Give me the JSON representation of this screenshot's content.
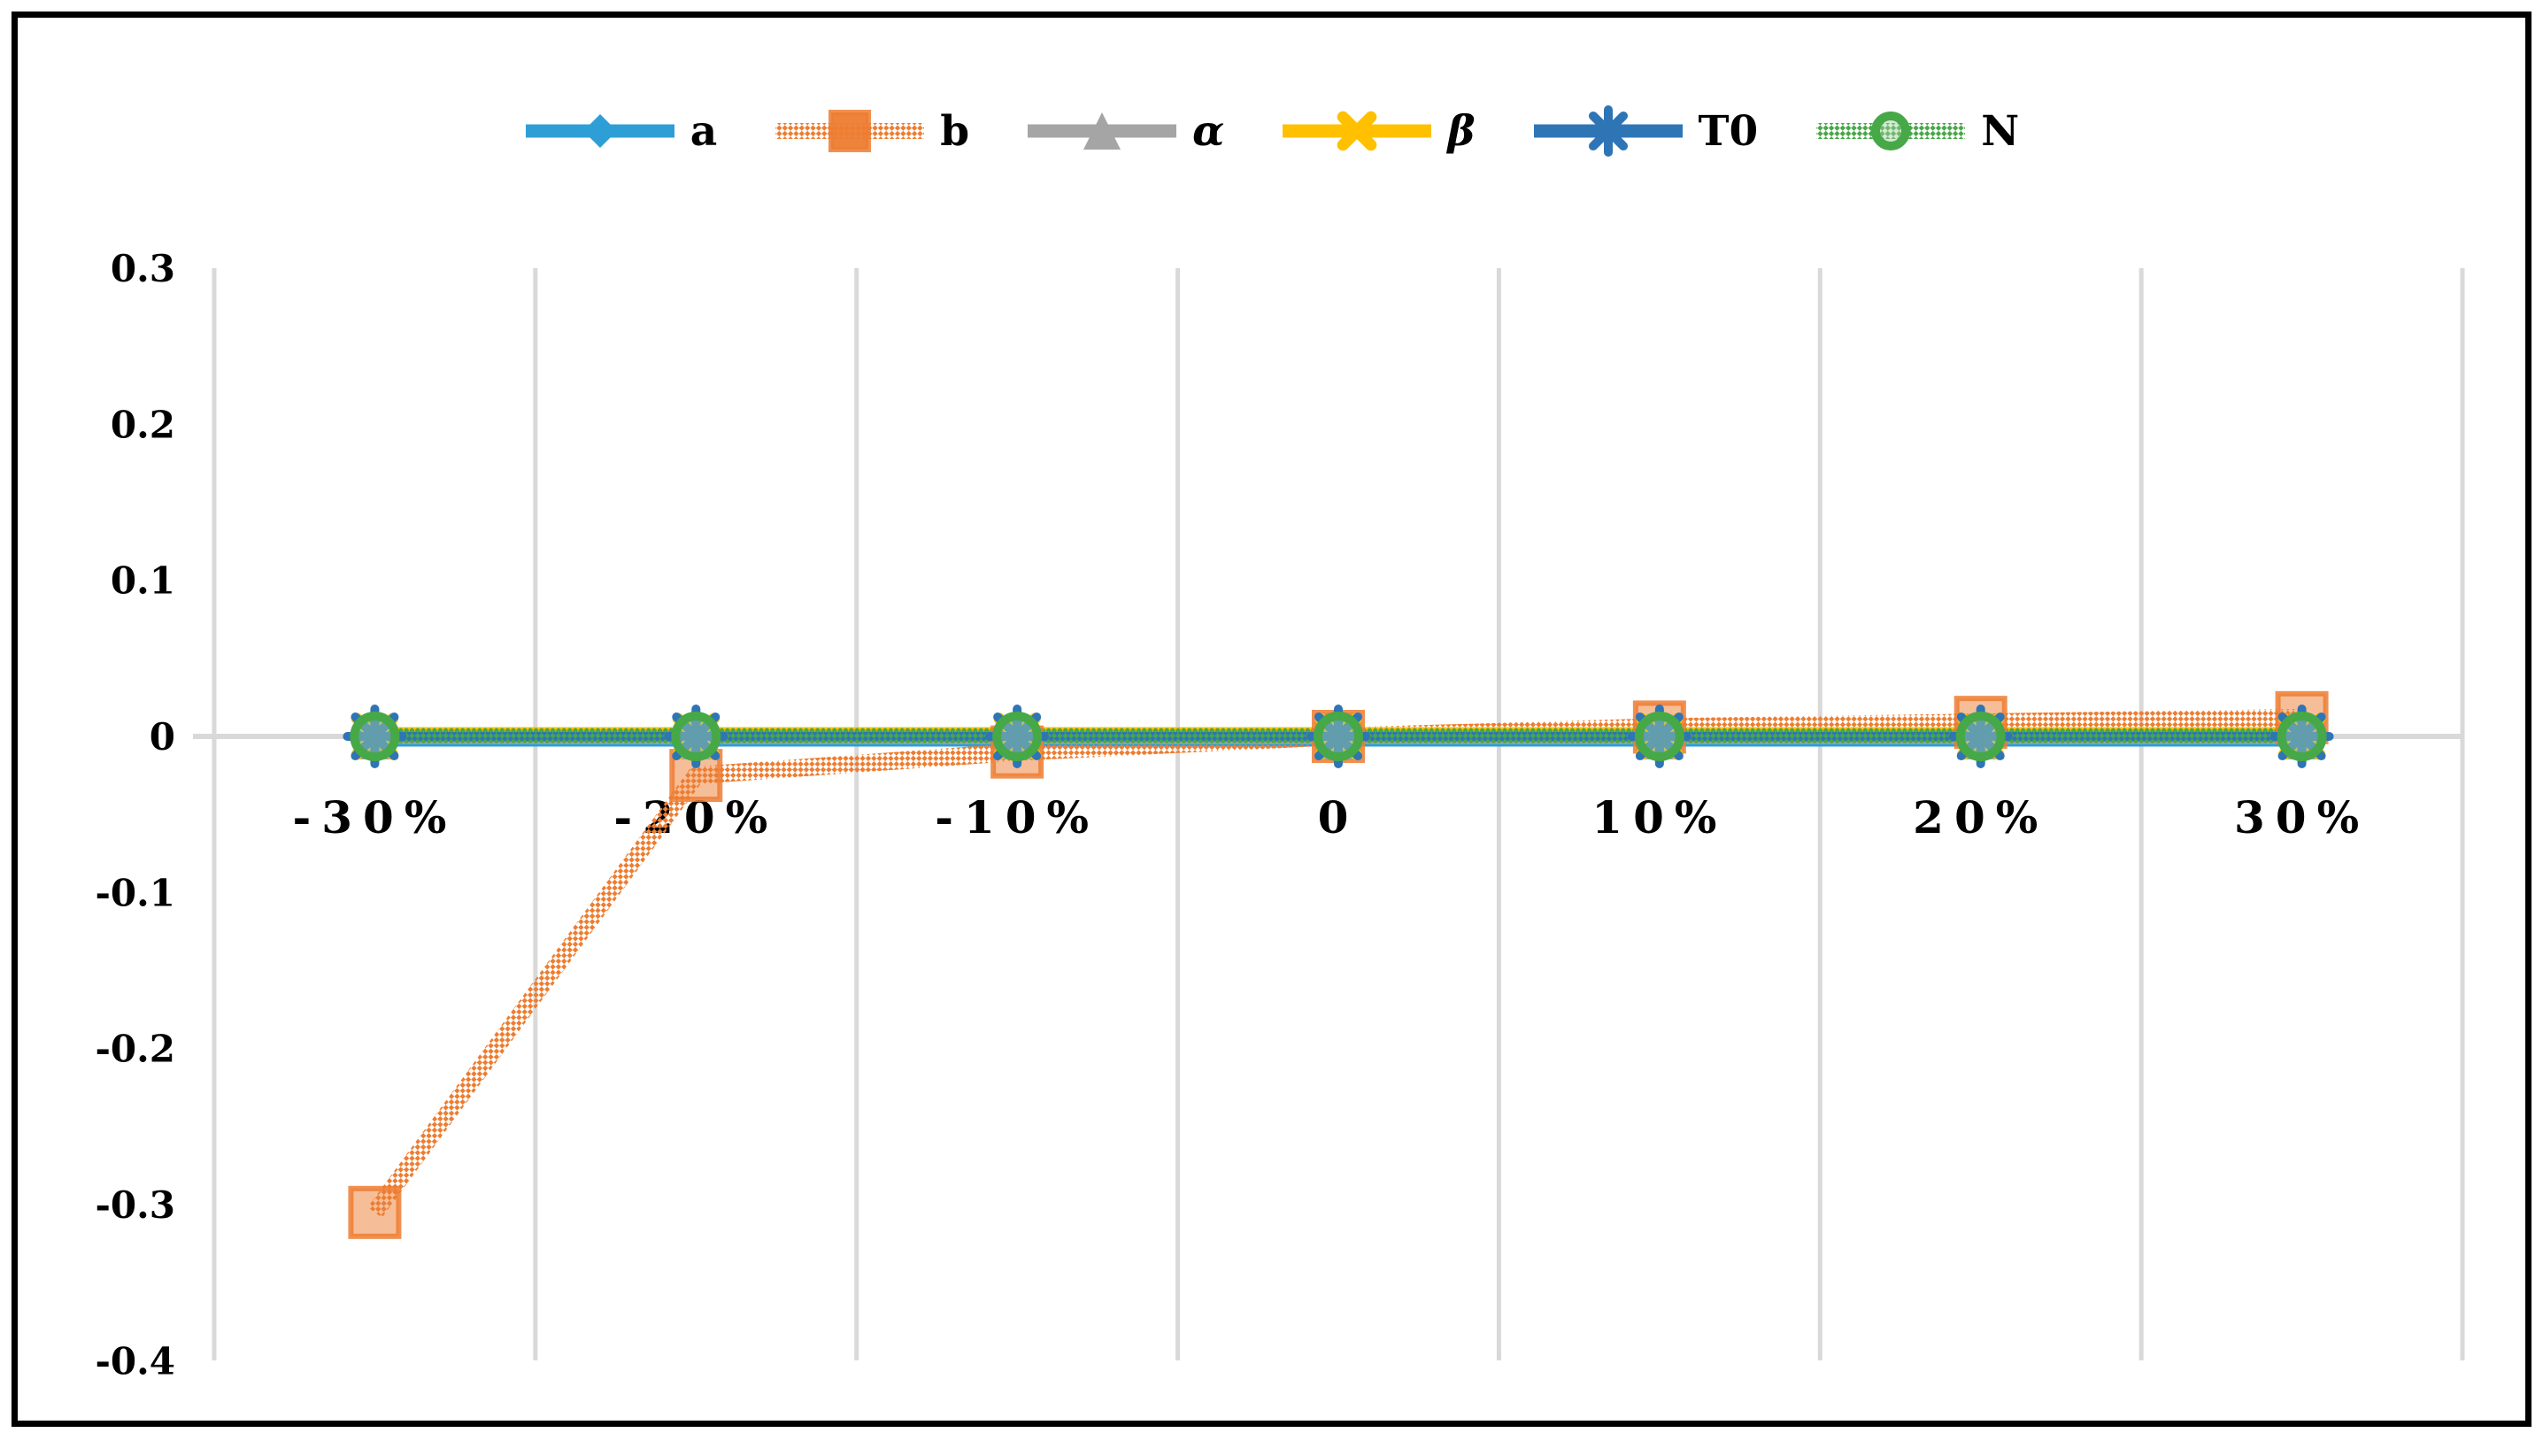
{
  "frame": {
    "border_color": "#000000",
    "background": "#ffffff"
  },
  "grid_color": "#d9d9d9",
  "text_color": "#000000",
  "chart_data": {
    "type": "line",
    "title": "",
    "xlabel": "",
    "ylabel": "",
    "categories": [
      "-30%",
      "-20%",
      "-10%",
      "0",
      "10%",
      "20%",
      "30%"
    ],
    "y_tick_labels": [
      "0.3",
      "0.2",
      "0.1",
      "0",
      "-0.1",
      "-0.2",
      "-0.3",
      "-0.4"
    ],
    "y_tick_values": [
      0.3,
      0.2,
      0.1,
      0,
      -0.1,
      -0.2,
      -0.3,
      -0.4
    ],
    "ylim": [
      -0.4,
      0.3
    ],
    "grid": "vertical-gridlines-plus-zero-line",
    "legend_position": "top",
    "series": [
      {
        "name": "a",
        "color": "#2e9fd6",
        "marker": "diamond",
        "line_style": "solid",
        "italic": false,
        "values": [
          0,
          0,
          0,
          0,
          0,
          0,
          0
        ]
      },
      {
        "name": "b",
        "color": "#ed7d31",
        "marker": "square",
        "line_style": "pattern-hatch",
        "italic": false,
        "values": [
          -0.305,
          -0.025,
          -0.01,
          0,
          0.006,
          0.009,
          0.012
        ]
      },
      {
        "name": "α",
        "color": "#a5a5a5",
        "marker": "triangle",
        "line_style": "solid",
        "italic": true,
        "values": [
          0,
          0,
          0,
          0,
          0,
          0,
          0
        ]
      },
      {
        "name": "β",
        "color": "#ffc000",
        "marker": "x",
        "line_style": "solid",
        "italic": true,
        "values": [
          0,
          0,
          0,
          0,
          0,
          0,
          0
        ]
      },
      {
        "name": "T0",
        "color": "#2e75b6",
        "marker": "asterisk",
        "line_style": "solid",
        "italic": false,
        "values": [
          0,
          0,
          0,
          0,
          0,
          0,
          0
        ]
      },
      {
        "name": "N",
        "color": "#47a847",
        "marker": "circle",
        "line_style": "pattern-dot",
        "italic": false,
        "values": [
          0,
          0,
          0,
          0,
          0,
          0,
          0
        ]
      }
    ]
  }
}
